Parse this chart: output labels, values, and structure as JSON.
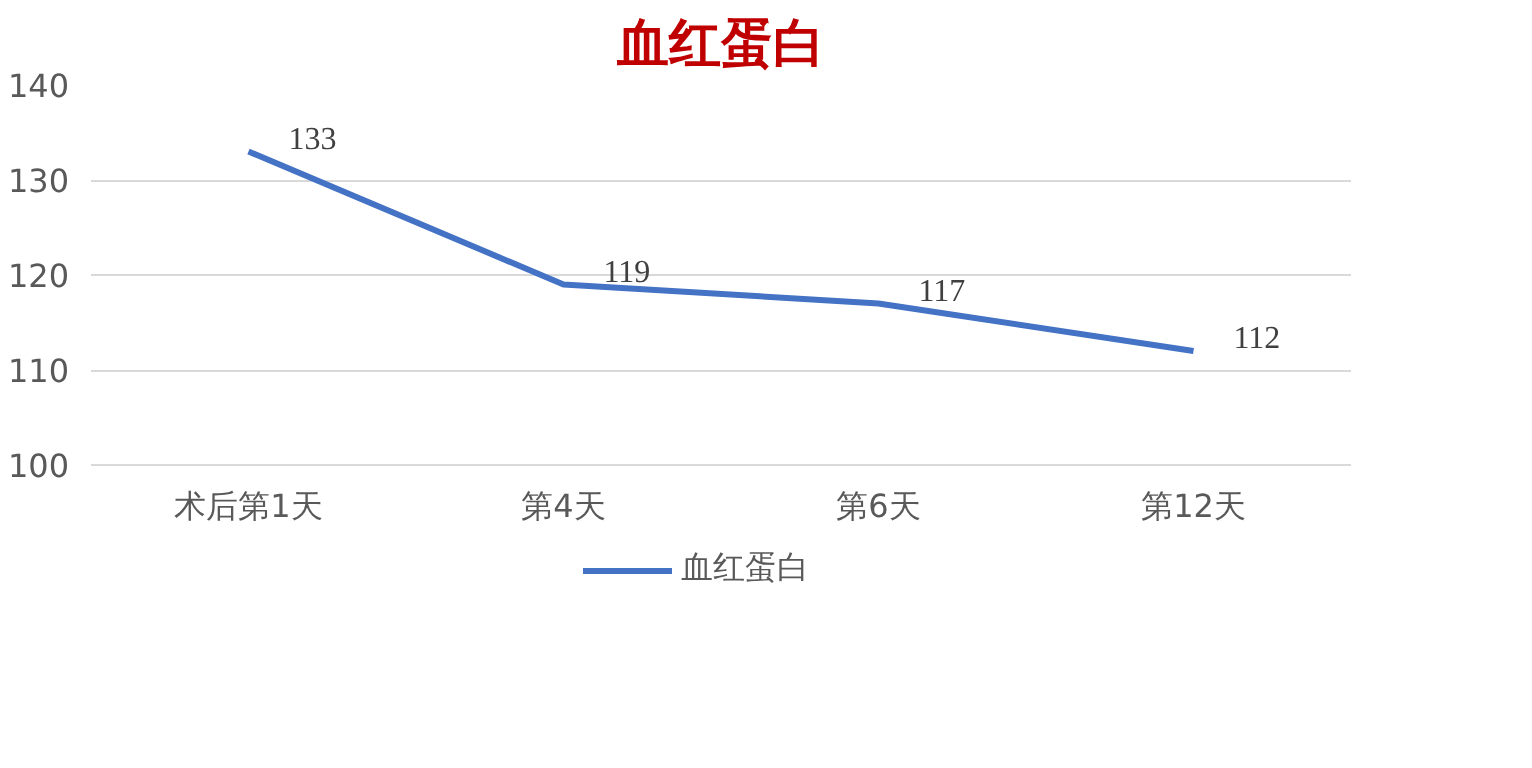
{
  "chart_data": {
    "type": "line",
    "title": "血红蛋白",
    "categories": [
      "术后第1天",
      "第4天",
      "第6天",
      "第12天"
    ],
    "series": [
      {
        "name": "血红蛋白",
        "color": "#4472c4",
        "values": [
          133,
          119,
          117,
          112
        ]
      }
    ],
    "ylim": [
      100,
      140
    ],
    "yticks": [
      100,
      110,
      120,
      130,
      140
    ],
    "grid": "y",
    "legend": "bottom",
    "data_labels": true,
    "marker": "none",
    "line_style": "solid"
  }
}
